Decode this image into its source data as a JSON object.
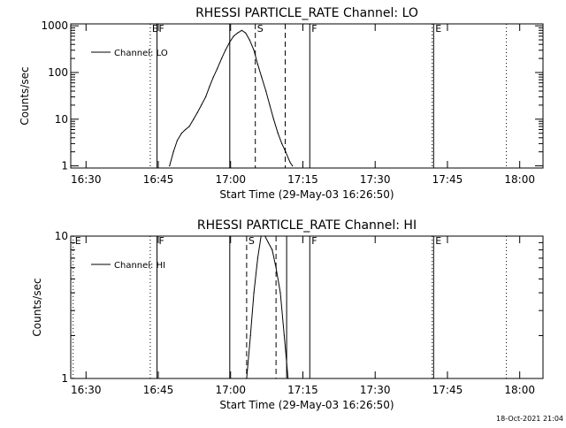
{
  "footer_timestamp": "18-Oct-2021 21:04",
  "chart_data": [
    {
      "type": "line",
      "title": "RHESSI PARTICLE_RATE Channel: LO",
      "xlabel": "Start Time (29-May-03 16:26:50)",
      "ylabel": "Counts/sec",
      "x_unit": "minutes after 16:26:50",
      "x_ticks": [
        "16:30",
        "16:45",
        "17:00",
        "17:15",
        "17:30",
        "17:45",
        "18:00"
      ],
      "x_tick_values": [
        3.17,
        18.17,
        33.17,
        48.17,
        63.17,
        78.17,
        93.17
      ],
      "xlim": [
        0,
        98
      ],
      "y_scale": "log",
      "ylim": [
        0.9,
        1100
      ],
      "y_ticks": [
        "1",
        "10",
        "100",
        "1000"
      ],
      "y_tick_values": [
        1,
        10,
        100,
        1000
      ],
      "legend": {
        "label": "Channel: LO",
        "position": "top-left"
      },
      "series": [
        {
          "x": [
            20.5,
            21.3,
            22.1,
            23.0,
            23.8,
            24.6,
            25.5,
            26.3,
            27.1,
            28.0,
            28.8,
            29.6,
            30.4,
            31.3,
            32.1,
            33.0,
            33.8,
            34.6,
            35.5,
            36.3,
            37.1,
            38.0,
            38.8,
            39.6,
            40.5,
            41.3,
            42.1,
            43.0,
            43.8,
            44.6,
            45.5,
            46.0
          ],
          "y": [
            1,
            2,
            3.5,
            5,
            6,
            7,
            10,
            14,
            20,
            30,
            50,
            80,
            120,
            200,
            300,
            450,
            600,
            700,
            800,
            700,
            500,
            300,
            150,
            80,
            40,
            20,
            10,
            5,
            3,
            2,
            1.2,
            1
          ]
        }
      ],
      "markers": [
        {
          "x": 16.5,
          "style": "dotted",
          "label": "E"
        },
        {
          "x": 17.9,
          "style": "solid",
          "label": "F"
        },
        {
          "x": 33.0,
          "style": "solid",
          "label": ""
        },
        {
          "x": 38.3,
          "style": "dashed",
          "label": "S"
        },
        {
          "x": 44.5,
          "style": "dashed",
          "label": ""
        },
        {
          "x": 49.6,
          "style": "solid",
          "label": "F"
        },
        {
          "x": 75.0,
          "style": "dotted",
          "label": ""
        },
        {
          "x": 75.3,
          "style": "solid",
          "label": "E"
        },
        {
          "x": 90.4,
          "style": "dotted",
          "label": ""
        }
      ]
    },
    {
      "type": "line",
      "title": "RHESSI PARTICLE_RATE Channel: HI",
      "xlabel": "Start Time (29-May-03 16:26:50)",
      "ylabel": "Counts/sec",
      "x_unit": "minutes after 16:26:50",
      "x_ticks": [
        "16:30",
        "16:45",
        "17:00",
        "17:15",
        "17:30",
        "17:45",
        "18:00"
      ],
      "x_tick_values": [
        3.17,
        18.17,
        33.17,
        48.17,
        63.17,
        78.17,
        93.17
      ],
      "xlim": [
        0,
        98
      ],
      "y_scale": "log",
      "ylim": [
        1,
        10
      ],
      "y_ticks": [
        "1",
        "10"
      ],
      "y_tick_values": [
        1,
        10
      ],
      "legend": {
        "label": "Channel: HI",
        "position": "top-left"
      },
      "series": [
        {
          "x": [
            36.5,
            37.3,
            38.0,
            38.8,
            39.5,
            40.3,
            41.0,
            41.8,
            42.6,
            43.5,
            44.3,
            45.1
          ],
          "y": [
            1,
            2,
            4,
            7,
            10,
            10,
            9,
            8,
            6,
            4,
            2,
            1
          ]
        }
      ],
      "markers": [
        {
          "x": 0.5,
          "style": "dotted",
          "label": "E"
        },
        {
          "x": 16.5,
          "style": "dotted",
          "label": ""
        },
        {
          "x": 17.9,
          "style": "solid",
          "label": "F"
        },
        {
          "x": 33.0,
          "style": "solid",
          "label": ""
        },
        {
          "x": 36.5,
          "style": "dashed",
          "label": "S"
        },
        {
          "x": 42.6,
          "style": "dashed",
          "label": ""
        },
        {
          "x": 44.8,
          "style": "solid",
          "label": ""
        },
        {
          "x": 49.6,
          "style": "solid",
          "label": "F"
        },
        {
          "x": 75.0,
          "style": "dotted",
          "label": ""
        },
        {
          "x": 75.3,
          "style": "solid",
          "label": "E"
        },
        {
          "x": 90.4,
          "style": "dotted",
          "label": ""
        }
      ]
    }
  ]
}
